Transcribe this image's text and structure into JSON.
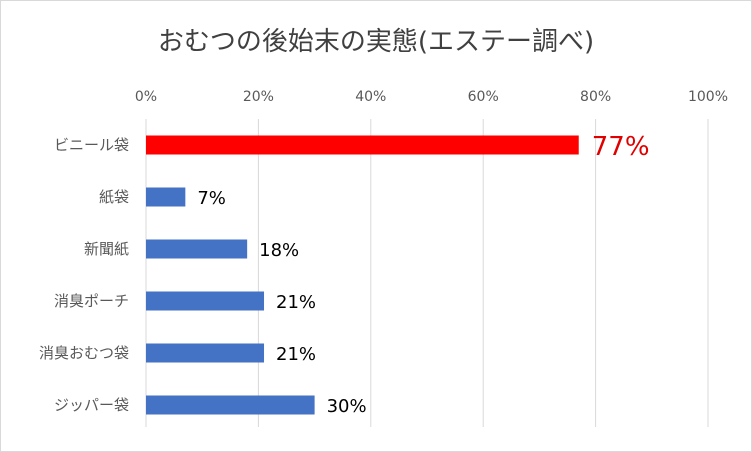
{
  "chart_data": {
    "type": "bar",
    "orientation": "horizontal",
    "title": "おむつの後始末の実態(エステー調べ)",
    "xlabel": "",
    "ylabel": "",
    "categories": [
      "ビニール袋",
      "紙袋",
      "新聞紙",
      "消臭ポーチ",
      "消臭おむつ袋",
      "ジッパー袋"
    ],
    "values": [
      77,
      7,
      18,
      21,
      21,
      30
    ],
    "data_labels": [
      "77%",
      "7%",
      "18%",
      "21%",
      "21%",
      "30%"
    ],
    "highlight_index": 0,
    "xlim": [
      0,
      100
    ],
    "ticks": [
      0,
      20,
      40,
      60,
      80,
      100
    ],
    "tick_labels": [
      "0%",
      "20%",
      "40%",
      "60%",
      "80%",
      "100%"
    ],
    "axis_position": "top",
    "grid": true,
    "legend": "none",
    "colors": {
      "bar": "#4472c4",
      "highlight": "#ff0000",
      "highlight_label": "#e00000",
      "grid": "#d9d9d9",
      "text": "#595959",
      "label": "#000000"
    }
  }
}
